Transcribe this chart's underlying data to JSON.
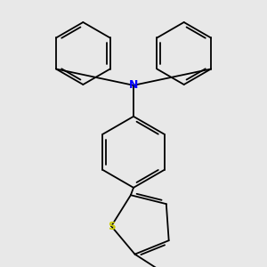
{
  "bg_color": "#e8e8e8",
  "bond_color": "#000000",
  "N_color": "#0000ff",
  "S_color": "#cccc00",
  "lw": 1.3,
  "dbo": 0.018,
  "figsize": [
    3.0,
    3.0
  ],
  "dpi": 100,
  "xlim": [
    -1.5,
    1.5
  ],
  "ylim": [
    -1.8,
    1.8
  ]
}
